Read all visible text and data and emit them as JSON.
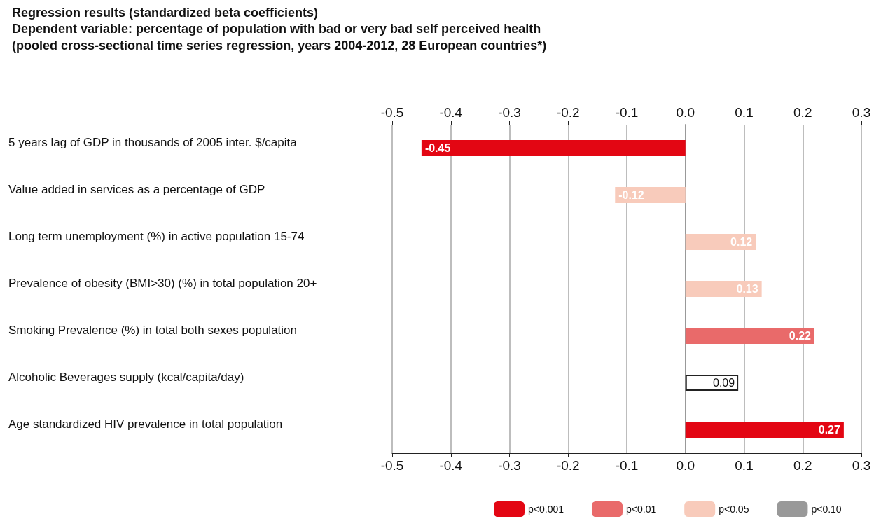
{
  "chart_data": {
    "type": "bar",
    "orientation": "horizontal",
    "stacked": true,
    "title": "Regression results (standardized beta coefficients)",
    "subtitle": "Dependent variable: percentage of population with bad or very bad self perceived health\n(pooled cross-sectional time series regression, years 2004-2012, 28 European countries*)",
    "categories": [
      "5 years lag of GDP in thousands of 2005 inter. $/capita",
      "Value added in services as a percentage of GDP",
      "Long term unemployment (%) in active population 15-74",
      "Prevalence of obesity (BMI>30) (%) in total population 20+",
      "Smoking Prevalence (%) in total both sexes population",
      "Alcoholic Beverages supply (kcal/capita/day)",
      "Age standardized HIV prevalence in total population"
    ],
    "series": [
      {
        "name": "p<0.001",
        "color": "#e30613",
        "values": [
          -0.45,
          null,
          null,
          null,
          null,
          null,
          0.27
        ]
      },
      {
        "name": "p<0.01",
        "color": "#e96a6a",
        "values": [
          null,
          null,
          null,
          null,
          0.22,
          null,
          null
        ]
      },
      {
        "name": "p<0.05",
        "color": "#f8cbbb",
        "values": [
          null,
          -0.12,
          0.12,
          0.13,
          null,
          null,
          null
        ]
      },
      {
        "name": "p<0.10",
        "color": "#999999",
        "values": [
          null,
          null,
          null,
          null,
          null,
          null,
          null
        ]
      },
      {
        "color": "#ffffff",
        "values": [
          null,
          null,
          null,
          null,
          null,
          0.09,
          null
        ]
      }
    ],
    "data_labels": true,
    "xlim": [
      -0.5,
      0.3
    ],
    "xticks": [
      -0.5,
      -0.4,
      -0.3,
      -0.2,
      -0.1,
      {
        "value": 0,
        "label": "0.0"
      },
      0.1,
      0.2,
      0.3
    ],
    "x2lim": [
      -0.5,
      0.3
    ],
    "x2ticks": [
      -0.5,
      -0.4,
      -0.3,
      -0.2,
      -0.1,
      {
        "value": 0,
        "label": "0.0"
      },
      0.1,
      0.2,
      0.3
    ],
    "grid": "x",
    "legend": "bottom"
  }
}
